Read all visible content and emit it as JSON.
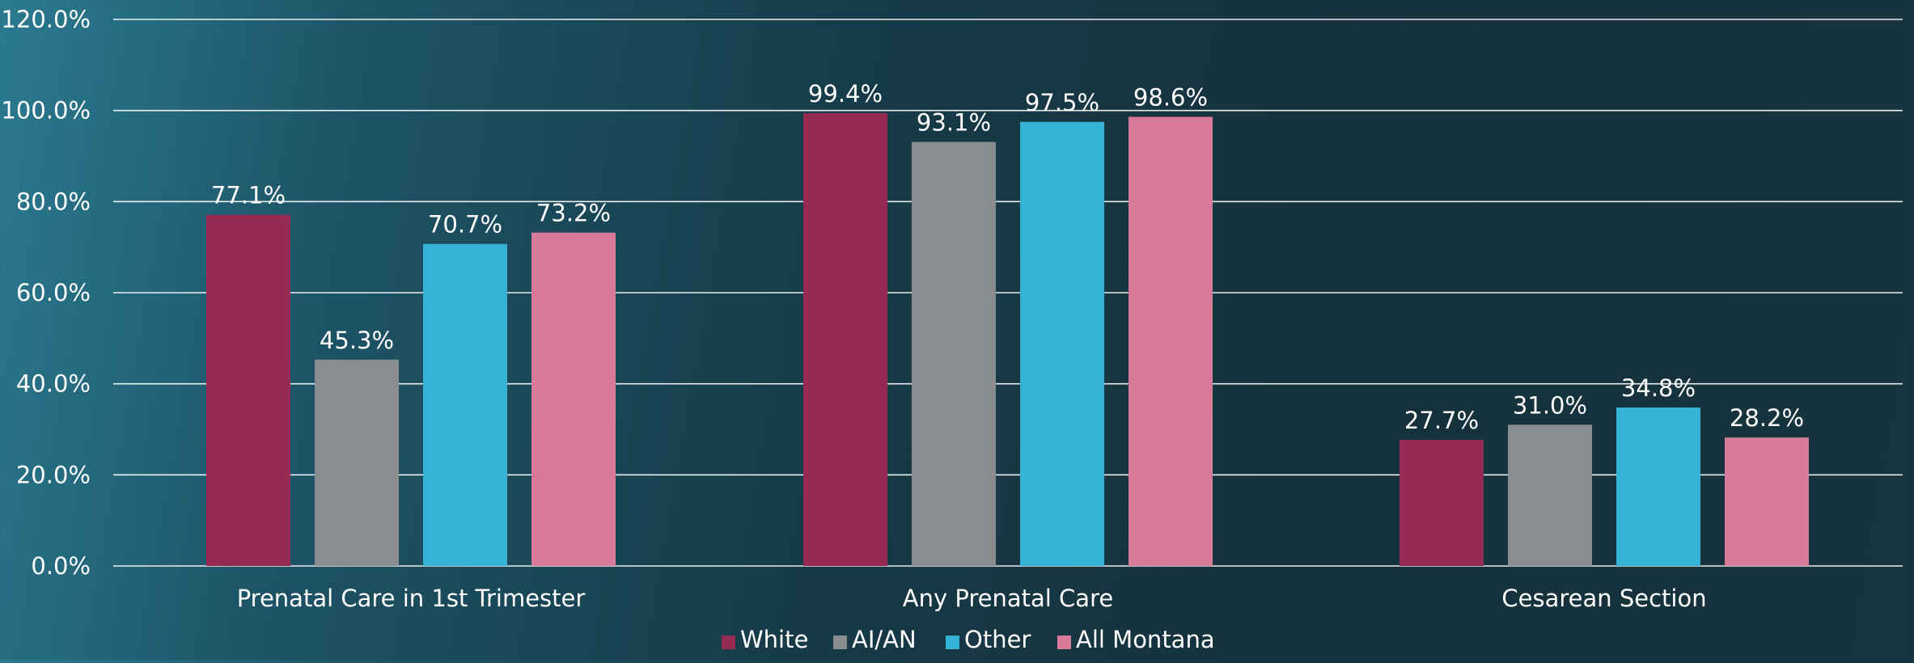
{
  "chart_data": {
    "type": "bar",
    "title": "",
    "xlabel": "",
    "ylabel": "",
    "ylim": [
      0,
      120
    ],
    "y_ticks": [
      0,
      20,
      40,
      60,
      80,
      100,
      120
    ],
    "y_tick_labels": [
      "0.0%",
      "20.0%",
      "40.0%",
      "60.0%",
      "80.0%",
      "100.0%",
      "120.0%"
    ],
    "grid": true,
    "legend_position": "bottom",
    "categories": [
      "Prenatal Care in 1st Trimester",
      "Any Prenatal Care",
      "Cesarean Section"
    ],
    "series": [
      {
        "name": "White",
        "color": "#952a53",
        "values": [
          77.1,
          99.4,
          27.7
        ],
        "labels": [
          "77.1%",
          "99.4%",
          "27.7%"
        ]
      },
      {
        "name": "AI/AN",
        "color": "#8a8d90",
        "values": [
          45.3,
          93.1,
          31.0
        ],
        "labels": [
          "45.3%",
          "93.1%",
          "31.0%"
        ]
      },
      {
        "name": "Other",
        "color": "#35b2d6",
        "values": [
          70.7,
          97.5,
          34.8
        ],
        "labels": [
          "70.7%",
          "97.5%",
          "34.8%"
        ]
      },
      {
        "name": "All Montana",
        "color": "#d87a99",
        "values": [
          73.2,
          98.6,
          28.2
        ],
        "labels": [
          "73.2%",
          "98.6%",
          "28.2%"
        ]
      }
    ]
  }
}
